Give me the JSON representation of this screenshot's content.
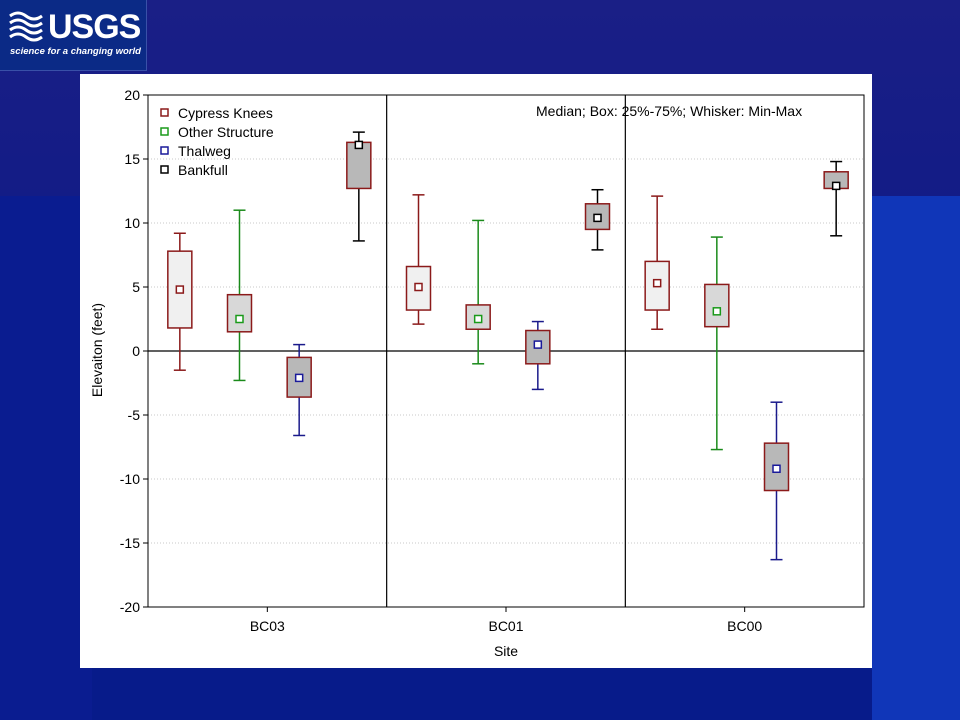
{
  "logo": {
    "wordmark": "USGS",
    "tagline": "science for a changing world"
  },
  "chart_data": {
    "type": "box",
    "title": "",
    "xlabel": "Site",
    "ylabel": "Elevaiton (feet)",
    "ylim": [
      -20,
      20
    ],
    "yticks": [
      -20,
      -15,
      -10,
      -5,
      0,
      5,
      10,
      15,
      20
    ],
    "grid": true,
    "note": "Median; Box: 25%-75%; Whisker: Min-Max",
    "categories": [
      "BC03",
      "BC01",
      "BC00"
    ],
    "series": [
      {
        "name": "Cypress Knees",
        "color": "#8b1a1a",
        "fill": "#f0f0f0",
        "marker": "#8b1a1a",
        "boxes": [
          {
            "min": -1.5,
            "q1": 1.8,
            "median": 4.8,
            "q3": 7.8,
            "max": 9.2
          },
          {
            "min": 2.1,
            "q1": 3.2,
            "median": 5.0,
            "q3": 6.6,
            "max": 12.2
          },
          {
            "min": 1.7,
            "q1": 3.2,
            "median": 5.3,
            "q3": 7.0,
            "max": 12.1
          }
        ]
      },
      {
        "name": "Other Structure",
        "color": "#1a8a1a",
        "boxcolor": "#8b1a1a",
        "fill": "#d8d8d8",
        "marker": "#1a9a1a",
        "boxes": [
          {
            "min": -2.3,
            "q1": 1.5,
            "median": 2.5,
            "q3": 4.4,
            "max": 11.0
          },
          {
            "min": -1.0,
            "q1": 1.7,
            "median": 2.5,
            "q3": 3.6,
            "max": 10.2
          },
          {
            "min": -7.7,
            "q1": 1.9,
            "median": 3.1,
            "q3": 5.2,
            "max": 8.9
          }
        ]
      },
      {
        "name": "Thalweg",
        "color": "#1a1a8b",
        "boxcolor": "#8b1a1a",
        "fill": "#b8b8b8",
        "marker": "#1a1a9a",
        "boxes": [
          {
            "min": -6.6,
            "q1": -3.6,
            "median": -2.1,
            "q3": -0.5,
            "max": 0.5
          },
          {
            "min": -3.0,
            "q1": -1.0,
            "median": 0.5,
            "q3": 1.6,
            "max": 2.3
          },
          {
            "min": -16.3,
            "q1": -10.9,
            "median": -9.2,
            "q3": -7.2,
            "max": -4.0
          }
        ]
      },
      {
        "name": "Bankfull",
        "color": "#000000",
        "boxcolor": "#8b1a1a",
        "fill": "#b8b8b8",
        "marker": "#000000",
        "boxes": [
          {
            "min": 8.6,
            "q1": 12.7,
            "median": 16.1,
            "q3": 16.3,
            "max": 17.1
          },
          {
            "min": 7.9,
            "q1": 9.5,
            "median": 10.4,
            "q3": 11.5,
            "max": 12.6
          },
          {
            "min": 9.0,
            "q1": 12.7,
            "median": 12.9,
            "q3": 14.0,
            "max": 14.8
          }
        ]
      }
    ],
    "legend": {
      "position": "top-left"
    }
  }
}
